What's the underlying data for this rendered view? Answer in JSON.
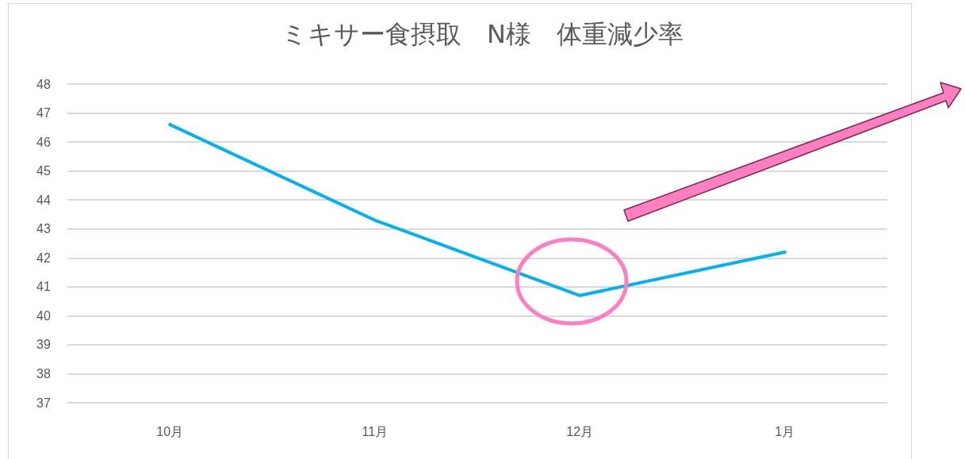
{
  "chart_data": {
    "type": "line",
    "title": "ミキサー食摂取　N様　体重減少率",
    "categories": [
      "10月",
      "11月",
      "12月",
      "1月"
    ],
    "series": [
      {
        "color": "#00b0f0",
        "values": [
          46.6,
          43.3,
          40.7,
          42.2
        ]
      }
    ],
    "ylim": [
      37,
      48
    ],
    "yticks": [
      37,
      38,
      39,
      40,
      41,
      42,
      43,
      44,
      45,
      46,
      47,
      48
    ],
    "grid": "y",
    "marker": "none",
    "line_style": "solid"
  }
}
